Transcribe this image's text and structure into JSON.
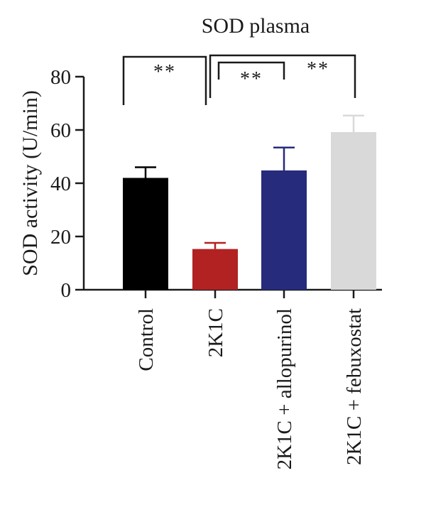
{
  "chart_data": {
    "type": "bar",
    "title": "SOD plasma",
    "ylabel": "SOD activity (U/min)",
    "xlabel": "",
    "ylim": [
      0,
      80
    ],
    "yticks": [
      0,
      20,
      40,
      60,
      80
    ],
    "grid": false,
    "categories": [
      "Control",
      "2K1C",
      "2K1C + allopurinol",
      "2K1C + febuxostat"
    ],
    "values": [
      42,
      15.3,
      44.8,
      59.2
    ],
    "errors": [
      4,
      2.3,
      8.6,
      6.2
    ],
    "colors": [
      "#000000",
      "#b22222",
      "#262b7c",
      "#d9d9d9"
    ],
    "significance": [
      {
        "from": 0,
        "to": 1,
        "label": "**"
      },
      {
        "from": 1,
        "to": 2,
        "label": "**"
      },
      {
        "from": 1,
        "to": 3,
        "label": "**"
      }
    ]
  }
}
